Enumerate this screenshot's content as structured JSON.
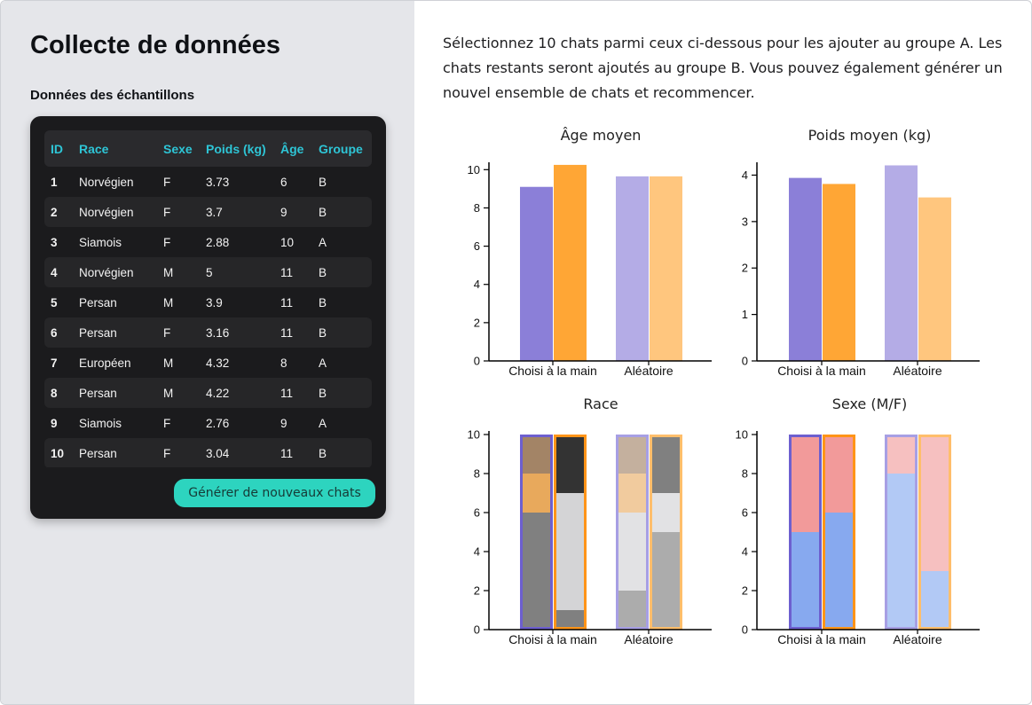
{
  "sidebar": {
    "title": "Collecte de données",
    "section_label": "Données des échantillons",
    "columns": [
      "ID",
      "Race",
      "Sexe",
      "Poids (kg)",
      "Âge",
      "Groupe"
    ],
    "rows": [
      [
        "1",
        "Norvégien",
        "F",
        "3.73",
        "6",
        "B"
      ],
      [
        "2",
        "Norvégien",
        "F",
        "3.7",
        "9",
        "B"
      ],
      [
        "3",
        "Siamois",
        "F",
        "2.88",
        "10",
        "A"
      ],
      [
        "4",
        "Norvégien",
        "M",
        "5",
        "11",
        "B"
      ],
      [
        "5",
        "Persan",
        "M",
        "3.9",
        "11",
        "B"
      ],
      [
        "6",
        "Persan",
        "F",
        "3.16",
        "11",
        "B"
      ],
      [
        "7",
        "Européen",
        "M",
        "4.32",
        "8",
        "A"
      ],
      [
        "8",
        "Persan",
        "M",
        "4.22",
        "11",
        "B"
      ],
      [
        "9",
        "Siamois",
        "F",
        "2.76",
        "9",
        "A"
      ],
      [
        "10",
        "Persan",
        "F",
        "3.04",
        "11",
        "B"
      ]
    ],
    "generate_label": "Générer de nouveaux chats"
  },
  "instructions": "Sélectionnez 10 chats parmi ceux ci-dessous pour les ajouter au groupe A. Les chats restants seront ajoutés au groupe B. Vous pouvez également générer un nouvel ensemble de chats et recommencer.",
  "colors": {
    "hand_a": "#8b7fd8",
    "hand_b": "#ffa635",
    "random_a": "#b4ace6",
    "random_b": "#ffc67e",
    "border_a": "#6d5fcf",
    "border_b": "#ff9418",
    "border_ra": "#a79fe4",
    "border_rb": "#ffbe6b"
  },
  "chart_data": [
    {
      "type": "bar",
      "title": "Âge moyen",
      "categories": [
        "Choisi à la main",
        "Aléatoire"
      ],
      "ylim": [
        0,
        10.2
      ],
      "yticks": [
        0,
        2,
        4,
        6,
        8,
        10
      ],
      "series": [
        {
          "values": [
            9.1,
            9.65
          ]
        },
        {
          "values": [
            10.25,
            9.65
          ]
        }
      ]
    },
    {
      "type": "bar",
      "title": "Poids moyen (kg)",
      "categories": [
        "Choisi à la main",
        "Aléatoire"
      ],
      "ylim": [
        0,
        4.2
      ],
      "yticks": [
        0,
        1,
        2,
        3,
        4
      ],
      "series": [
        {
          "values": [
            3.94,
            4.21
          ]
        },
        {
          "values": [
            3.81,
            3.52
          ]
        }
      ]
    },
    {
      "type": "bar",
      "stacked": true,
      "title": "Race",
      "categories": [
        "Choisi à la main",
        "Aléatoire"
      ],
      "ylim": [
        0,
        10
      ],
      "yticks": [
        0,
        2,
        4,
        6,
        8,
        10
      ],
      "bars": [
        {
          "segments": [
            {
              "value": 6,
              "color": "#808080"
            },
            {
              "value": 2,
              "color": "#e8a95c"
            },
            {
              "value": 2,
              "color": "#a38466"
            }
          ]
        },
        {
          "segments": [
            {
              "value": 1,
              "color": "#808080"
            },
            {
              "value": 6,
              "color": "#d4d4d6"
            },
            {
              "value": 3,
              "color": "#333333"
            }
          ]
        },
        {
          "segments": [
            {
              "value": 2,
              "color": "#acacac"
            },
            {
              "value": 4,
              "color": "#e2e2e4"
            },
            {
              "value": 2,
              "color": "#f1cb9e"
            },
            {
              "value": 2,
              "color": "#c4b09e"
            }
          ]
        },
        {
          "segments": [
            {
              "value": 5,
              "color": "#acacac"
            },
            {
              "value": 2,
              "color": "#e2e2e4"
            },
            {
              "value": 3,
              "color": "#808080"
            }
          ]
        }
      ]
    },
    {
      "type": "bar",
      "stacked": true,
      "title": "Sexe (M/F)",
      "categories": [
        "Choisi à la main",
        "Aléatoire"
      ],
      "ylim": [
        0,
        10
      ],
      "yticks": [
        0,
        2,
        4,
        6,
        8,
        10
      ],
      "bars": [
        {
          "segments": [
            {
              "value": 5,
              "color": "#87a9ef"
            },
            {
              "value": 5,
              "color": "#f29a9a"
            }
          ]
        },
        {
          "segments": [
            {
              "value": 6,
              "color": "#87a9ef"
            },
            {
              "value": 4,
              "color": "#f29a9a"
            }
          ]
        },
        {
          "segments": [
            {
              "value": 8,
              "color": "#b2c9f5"
            },
            {
              "value": 2,
              "color": "#f6c0c0"
            }
          ]
        },
        {
          "segments": [
            {
              "value": 3,
              "color": "#b2c9f5"
            },
            {
              "value": 7,
              "color": "#f6c0c0"
            }
          ]
        }
      ]
    }
  ]
}
